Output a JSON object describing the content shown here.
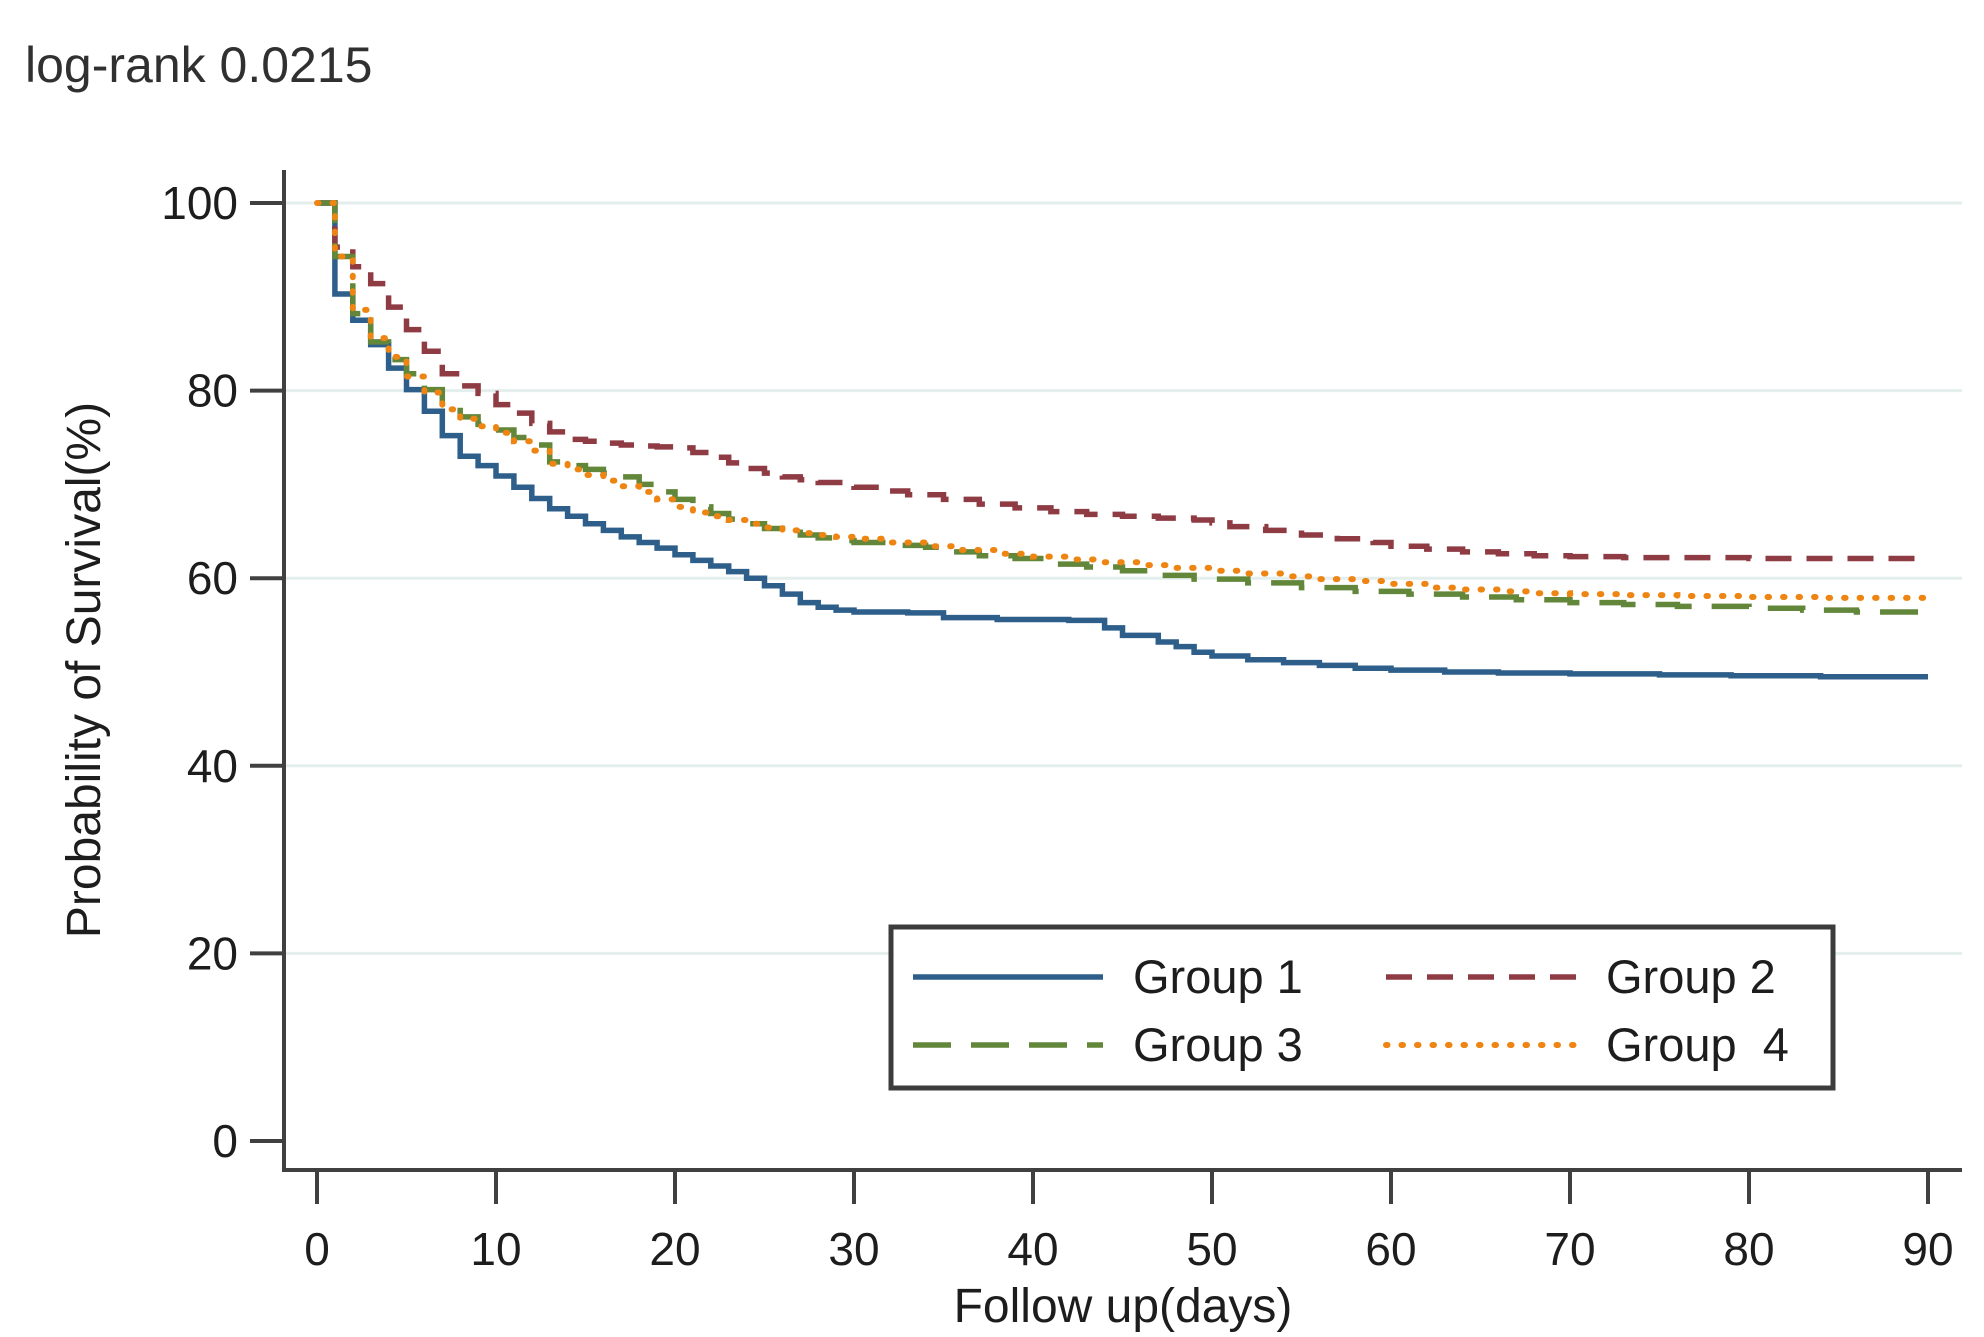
{
  "title": "log-rank 0.0215",
  "chart_data": {
    "type": "line",
    "subtype": "kaplan-meier-step-survival",
    "title": "log-rank 0.0215",
    "xlabel": "Follow up(days)",
    "ylabel": "Probability of Survival(%)",
    "xlim": [
      0,
      90
    ],
    "ylim": [
      0,
      100
    ],
    "x_ticks": [
      0,
      10,
      20,
      30,
      40,
      50,
      60,
      70,
      80,
      90
    ],
    "y_ticks": [
      0,
      20,
      40,
      60,
      80,
      100
    ],
    "grid": "horizontal-light",
    "grid_color": "#e3eeed",
    "axis_color": "#404040",
    "legend_position": "inside-bottom-center-box",
    "series": [
      {
        "name": "Group 1",
        "color": "#2d5f8a",
        "style": "solid",
        "points": [
          [
            0,
            100
          ],
          [
            1,
            90.3
          ],
          [
            2,
            87.5
          ],
          [
            3,
            84.9
          ],
          [
            4,
            82.4
          ],
          [
            5,
            80.1
          ],
          [
            6,
            77.8
          ],
          [
            7,
            75.2
          ],
          [
            8,
            73.0
          ],
          [
            9,
            72.0
          ],
          [
            10,
            70.9
          ],
          [
            11,
            69.7
          ],
          [
            12,
            68.5
          ],
          [
            13,
            67.4
          ],
          [
            14,
            66.6
          ],
          [
            15,
            65.8
          ],
          [
            16,
            65.1
          ],
          [
            17,
            64.4
          ],
          [
            18,
            63.8
          ],
          [
            19,
            63.2
          ],
          [
            20,
            62.5
          ],
          [
            21,
            61.9
          ],
          [
            22,
            61.3
          ],
          [
            23,
            60.7
          ],
          [
            24,
            60.0
          ],
          [
            25,
            59.2
          ],
          [
            26,
            58.3
          ],
          [
            27,
            57.4
          ],
          [
            28,
            56.9
          ],
          [
            29,
            56.6
          ],
          [
            30,
            56.4
          ],
          [
            33,
            56.3
          ],
          [
            35,
            55.8
          ],
          [
            38,
            55.6
          ],
          [
            42,
            55.5
          ],
          [
            44,
            54.7
          ],
          [
            45,
            53.9
          ],
          [
            47,
            53.2
          ],
          [
            48,
            52.7
          ],
          [
            49,
            52.1
          ],
          [
            50,
            51.7
          ],
          [
            52,
            51.3
          ],
          [
            54,
            51.0
          ],
          [
            56,
            50.7
          ],
          [
            58,
            50.4
          ],
          [
            60,
            50.2
          ],
          [
            63,
            50.0
          ],
          [
            66,
            49.9
          ],
          [
            70,
            49.8
          ],
          [
            75,
            49.7
          ],
          [
            79,
            49.6
          ],
          [
            84,
            49.5
          ],
          [
            90,
            49.5
          ]
        ]
      },
      {
        "name": "Group 2",
        "color": "#8e3b43",
        "style": "dashed",
        "points": [
          [
            0,
            100
          ],
          [
            1,
            95.3
          ],
          [
            2,
            93.2
          ],
          [
            3,
            91.4
          ],
          [
            4,
            88.9
          ],
          [
            5,
            86.5
          ],
          [
            6,
            84.2
          ],
          [
            7,
            81.8
          ],
          [
            8,
            80.5
          ],
          [
            9,
            79.7
          ],
          [
            10,
            78.5
          ],
          [
            11,
            77.6
          ],
          [
            12,
            76.5
          ],
          [
            13,
            75.6
          ],
          [
            14,
            74.8
          ],
          [
            15,
            74.6
          ],
          [
            16,
            74.4
          ],
          [
            17,
            74.2
          ],
          [
            18,
            74.1
          ],
          [
            19,
            74.0
          ],
          [
            20,
            73.9
          ],
          [
            21,
            73.4
          ],
          [
            22,
            72.9
          ],
          [
            23,
            72.3
          ],
          [
            24,
            71.7
          ],
          [
            25,
            71.2
          ],
          [
            26,
            70.8
          ],
          [
            27,
            70.5
          ],
          [
            28,
            70.2
          ],
          [
            30,
            69.7
          ],
          [
            32,
            69.3
          ],
          [
            33,
            68.9
          ],
          [
            35,
            68.4
          ],
          [
            37,
            67.9
          ],
          [
            39,
            67.5
          ],
          [
            41,
            67.1
          ],
          [
            43,
            66.8
          ],
          [
            45,
            66.6
          ],
          [
            47,
            66.4
          ],
          [
            49,
            66.2
          ],
          [
            50,
            65.9
          ],
          [
            51,
            65.5
          ],
          [
            53,
            65.1
          ],
          [
            55,
            64.6
          ],
          [
            57,
            64.2
          ],
          [
            59,
            63.8
          ],
          [
            60,
            63.4
          ],
          [
            62,
            63.1
          ],
          [
            64,
            62.8
          ],
          [
            66,
            62.6
          ],
          [
            68,
            62.4
          ],
          [
            70,
            62.3
          ],
          [
            73,
            62.2
          ],
          [
            76,
            62.2
          ],
          [
            80,
            62.1
          ],
          [
            90,
            62.1
          ]
        ]
      },
      {
        "name": "Group 3",
        "color": "#62863a",
        "style": "long-dash",
        "points": [
          [
            0,
            100
          ],
          [
            1,
            94.3
          ],
          [
            2,
            88.2
          ],
          [
            3,
            85.2
          ],
          [
            4,
            83.3
          ],
          [
            5,
            81.8
          ],
          [
            6,
            80.1
          ],
          [
            7,
            78.3
          ],
          [
            8,
            77.2
          ],
          [
            9,
            76.4
          ],
          [
            10,
            75.8
          ],
          [
            11,
            75.0
          ],
          [
            12,
            74.2
          ],
          [
            13,
            72.4
          ],
          [
            14,
            72.0
          ],
          [
            15,
            71.6
          ],
          [
            16,
            71.2
          ],
          [
            17,
            70.8
          ],
          [
            18,
            70.0
          ],
          [
            19,
            69.2
          ],
          [
            20,
            68.4
          ],
          [
            21,
            67.6
          ],
          [
            22,
            66.9
          ],
          [
            23,
            66.3
          ],
          [
            24,
            65.8
          ],
          [
            25,
            65.3
          ],
          [
            26,
            64.9
          ],
          [
            27,
            64.6
          ],
          [
            28,
            64.3
          ],
          [
            29,
            64.0
          ],
          [
            30,
            63.8
          ],
          [
            32,
            63.5
          ],
          [
            34,
            63.3
          ],
          [
            35,
            62.8
          ],
          [
            37,
            62.4
          ],
          [
            39,
            62.1
          ],
          [
            41,
            61.5
          ],
          [
            43,
            61.2
          ],
          [
            45,
            60.8
          ],
          [
            47,
            60.3
          ],
          [
            49,
            59.9
          ],
          [
            52,
            59.5
          ],
          [
            55,
            59.0
          ],
          [
            58,
            58.6
          ],
          [
            61,
            58.3
          ],
          [
            64,
            58.0
          ],
          [
            67,
            57.7
          ],
          [
            70,
            57.4
          ],
          [
            73,
            57.2
          ],
          [
            76,
            57.0
          ],
          [
            80,
            56.8
          ],
          [
            83,
            56.6
          ],
          [
            86,
            56.4
          ],
          [
            90,
            56.4
          ]
        ]
      },
      {
        "name": "Group  4",
        "color": "#ee8512",
        "style": "dotted",
        "points": [
          [
            0,
            100
          ],
          [
            1,
            94.3
          ],
          [
            2,
            88.6
          ],
          [
            3,
            85.6
          ],
          [
            4,
            83.6
          ],
          [
            5,
            81.5
          ],
          [
            6,
            79.8
          ],
          [
            7,
            78.0
          ],
          [
            8,
            77.0
          ],
          [
            9,
            76.2
          ],
          [
            10,
            75.5
          ],
          [
            11,
            74.6
          ],
          [
            12,
            73.6
          ],
          [
            13,
            72.2
          ],
          [
            14,
            71.6
          ],
          [
            15,
            71.0
          ],
          [
            16,
            70.4
          ],
          [
            17,
            69.8
          ],
          [
            18,
            69.2
          ],
          [
            19,
            68.4
          ],
          [
            20,
            67.6
          ],
          [
            21,
            67.0
          ],
          [
            22,
            66.6
          ],
          [
            23,
            66.2
          ],
          [
            24,
            65.8
          ],
          [
            25,
            65.4
          ],
          [
            26,
            65.1
          ],
          [
            27,
            64.8
          ],
          [
            28,
            64.6
          ],
          [
            29,
            64.4
          ],
          [
            30,
            64.2
          ],
          [
            32,
            63.8
          ],
          [
            34,
            63.4
          ],
          [
            36,
            63.0
          ],
          [
            38,
            62.6
          ],
          [
            40,
            62.3
          ],
          [
            42,
            62.0
          ],
          [
            44,
            61.7
          ],
          [
            46,
            61.4
          ],
          [
            48,
            61.1
          ],
          [
            50,
            60.8
          ],
          [
            52,
            60.5
          ],
          [
            54,
            60.2
          ],
          [
            56,
            59.9
          ],
          [
            58,
            59.7
          ],
          [
            60,
            59.4
          ],
          [
            62,
            59.0
          ],
          [
            64,
            58.8
          ],
          [
            66,
            58.6
          ],
          [
            68,
            58.4
          ],
          [
            70,
            58.3
          ],
          [
            73,
            58.2
          ],
          [
            76,
            58.1
          ],
          [
            80,
            58.0
          ],
          [
            84,
            57.9
          ],
          [
            90,
            57.8
          ]
        ]
      }
    ],
    "legend_labels": [
      "Group 1",
      "Group 2",
      "Group 3",
      "Group  4"
    ]
  }
}
